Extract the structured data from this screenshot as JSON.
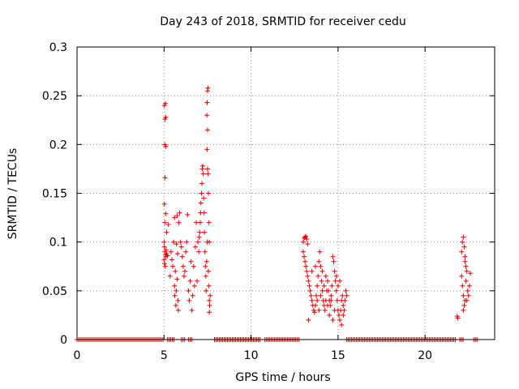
{
  "chart_data": {
    "type": "scatter",
    "title": "Day 243 of 2018, SRMTID for receiver cedu",
    "xlabel": "GPS time / hours",
    "ylabel": "SRMTID / TECUs",
    "xlim": [
      0,
      24
    ],
    "ylim": [
      0,
      0.3
    ],
    "grid": true,
    "marker": "plus",
    "color": "#e00000",
    "x_ticks": [
      0,
      5,
      10,
      15,
      20
    ],
    "x_tick_labels": [
      "0",
      "5",
      "10",
      "15",
      "20"
    ],
    "y_ticks": [
      0,
      0.05,
      0.1,
      0.15,
      0.2,
      0.25,
      0.3
    ],
    "y_tick_labels": [
      "0",
      "0.05",
      "0.1",
      "0.15",
      "0.2",
      "0.25",
      "0.3"
    ],
    "clusters": [
      {
        "x_range": [
          5.0,
          7.6
        ],
        "y_range": [
          0.03,
          0.26
        ]
      },
      {
        "x_range": [
          12.8,
          15.6
        ],
        "y_range": [
          0.02,
          0.107
        ]
      },
      {
        "x_range": [
          21.8,
          22.6
        ],
        "y_range": [
          0.02,
          0.105
        ]
      }
    ],
    "zero_baseline_ranges": [
      [
        0.0,
        5.0
      ],
      [
        5.2,
        5.6
      ],
      [
        6.0,
        6.2
      ],
      [
        6.4,
        6.6
      ],
      [
        7.9,
        10.6
      ],
      [
        10.8,
        12.8
      ],
      [
        15.5,
        21.8
      ],
      [
        22.0,
        22.2
      ],
      [
        22.8,
        23.0
      ]
    ],
    "points": [
      [
        5.02,
        0.24
      ],
      [
        5.08,
        0.242
      ],
      [
        5.05,
        0.226
      ],
      [
        5.1,
        0.228
      ],
      [
        5.04,
        0.2
      ],
      [
        5.1,
        0.198
      ],
      [
        5.06,
        0.166
      ],
      [
        5.02,
        0.139
      ],
      [
        5.1,
        0.129
      ],
      [
        5.05,
        0.12
      ],
      [
        5.25,
        0.118
      ],
      [
        5.15,
        0.11
      ],
      [
        5.0,
        0.1
      ],
      [
        5.02,
        0.095
      ],
      [
        5.05,
        0.09
      ],
      [
        5.08,
        0.087
      ],
      [
        5.1,
        0.085
      ],
      [
        5.12,
        0.092
      ],
      [
        5.0,
        0.082
      ],
      [
        5.03,
        0.078
      ],
      [
        5.07,
        0.075
      ],
      [
        5.15,
        0.088
      ],
      [
        5.2,
        0.086
      ],
      [
        5.35,
        0.065
      ],
      [
        5.4,
        0.09
      ],
      [
        5.45,
        0.082
      ],
      [
        5.5,
        0.075
      ],
      [
        5.55,
        0.1
      ],
      [
        5.6,
        0.055
      ],
      [
        5.62,
        0.045
      ],
      [
        5.65,
        0.07
      ],
      [
        5.68,
        0.035
      ],
      [
        5.7,
        0.05
      ],
      [
        5.72,
        0.098
      ],
      [
        5.75,
        0.062
      ],
      [
        5.78,
        0.088
      ],
      [
        5.8,
        0.04
      ],
      [
        5.82,
        0.03
      ],
      [
        5.6,
        0.125
      ],
      [
        5.75,
        0.127
      ],
      [
        5.85,
        0.12
      ],
      [
        5.9,
        0.13
      ],
      [
        5.95,
        0.1
      ],
      [
        6.0,
        0.095
      ],
      [
        6.05,
        0.085
      ],
      [
        6.1,
        0.075
      ],
      [
        6.15,
        0.065
      ],
      [
        6.2,
        0.07
      ],
      [
        6.25,
        0.09
      ],
      [
        6.3,
        0.1
      ],
      [
        6.35,
        0.128
      ],
      [
        6.4,
        0.05
      ],
      [
        6.45,
        0.04
      ],
      [
        6.5,
        0.06
      ],
      [
        6.55,
        0.08
      ],
      [
        6.6,
        0.03
      ],
      [
        6.65,
        0.045
      ],
      [
        6.7,
        0.075
      ],
      [
        6.75,
        0.055
      ],
      [
        6.8,
        0.095
      ],
      [
        6.85,
        0.12
      ],
      [
        6.9,
        0.06
      ],
      [
        6.95,
        0.1
      ],
      [
        7.0,
        0.09
      ],
      [
        7.02,
        0.105
      ],
      [
        7.05,
        0.11
      ],
      [
        7.08,
        0.12
      ],
      [
        7.1,
        0.13
      ],
      [
        7.12,
        0.14
      ],
      [
        7.15,
        0.15
      ],
      [
        7.18,
        0.16
      ],
      [
        7.2,
        0.175
      ],
      [
        7.22,
        0.178
      ],
      [
        7.25,
        0.17
      ],
      [
        7.28,
        0.145
      ],
      [
        7.3,
        0.13
      ],
      [
        7.32,
        0.11
      ],
      [
        7.35,
        0.09
      ],
      [
        7.38,
        0.075
      ],
      [
        7.4,
        0.065
      ],
      [
        7.42,
        0.05
      ],
      [
        7.45,
        0.08
      ],
      [
        7.48,
        0.1
      ],
      [
        7.5,
        0.255
      ],
      [
        7.52,
        0.258
      ],
      [
        7.48,
        0.243
      ],
      [
        7.46,
        0.23
      ],
      [
        7.5,
        0.215
      ],
      [
        7.47,
        0.195
      ],
      [
        7.5,
        0.175
      ],
      [
        7.53,
        0.17
      ],
      [
        7.55,
        0.15
      ],
      [
        7.58,
        0.12
      ],
      [
        7.6,
        0.1
      ],
      [
        7.55,
        0.07
      ],
      [
        7.58,
        0.055
      ],
      [
        7.6,
        0.04
      ],
      [
        7.62,
        0.035
      ],
      [
        7.65,
        0.045
      ],
      [
        7.6,
        0.028
      ],
      [
        13.0,
        0.1
      ],
      [
        13.05,
        0.104
      ],
      [
        13.1,
        0.105
      ],
      [
        13.15,
        0.106
      ],
      [
        13.2,
        0.103
      ],
      [
        13.25,
        0.098
      ],
      [
        13.0,
        0.09
      ],
      [
        13.05,
        0.085
      ],
      [
        13.1,
        0.08
      ],
      [
        13.15,
        0.075
      ],
      [
        13.2,
        0.07
      ],
      [
        13.25,
        0.065
      ],
      [
        13.3,
        0.06
      ],
      [
        13.35,
        0.055
      ],
      [
        13.4,
        0.05
      ],
      [
        13.45,
        0.045
      ],
      [
        13.5,
        0.04
      ],
      [
        13.55,
        0.035
      ],
      [
        13.6,
        0.03
      ],
      [
        13.65,
        0.028
      ],
      [
        13.7,
        0.035
      ],
      [
        13.75,
        0.045
      ],
      [
        13.8,
        0.055
      ],
      [
        13.85,
        0.065
      ],
      [
        13.9,
        0.08
      ],
      [
        13.95,
        0.09
      ],
      [
        14.0,
        0.075
      ],
      [
        14.05,
        0.06
      ],
      [
        14.1,
        0.05
      ],
      [
        14.15,
        0.04
      ],
      [
        14.2,
        0.035
      ],
      [
        14.25,
        0.03
      ],
      [
        14.3,
        0.04
      ],
      [
        14.35,
        0.05
      ],
      [
        14.4,
        0.06
      ],
      [
        14.45,
        0.05
      ],
      [
        14.5,
        0.04
      ],
      [
        14.55,
        0.035
      ],
      [
        14.6,
        0.045
      ],
      [
        14.65,
        0.055
      ],
      [
        14.7,
        0.085
      ],
      [
        14.75,
        0.08
      ],
      [
        14.8,
        0.07
      ],
      [
        14.85,
        0.06
      ],
      [
        14.9,
        0.05
      ],
      [
        14.95,
        0.04
      ],
      [
        15.0,
        0.03
      ],
      [
        15.05,
        0.025
      ],
      [
        15.1,
        0.02
      ],
      [
        15.15,
        0.03
      ],
      [
        15.2,
        0.04
      ],
      [
        15.25,
        0.045
      ],
      [
        15.3,
        0.035
      ],
      [
        15.35,
        0.03
      ],
      [
        15.4,
        0.04
      ],
      [
        15.45,
        0.05
      ],
      [
        15.5,
        0.045
      ],
      [
        13.3,
        0.02
      ],
      [
        13.5,
        0.07
      ],
      [
        13.7,
        0.075
      ],
      [
        13.9,
        0.03
      ],
      [
        14.1,
        0.07
      ],
      [
        14.3,
        0.065
      ],
      [
        14.5,
        0.025
      ],
      [
        14.7,
        0.02
      ],
      [
        14.9,
        0.065
      ],
      [
        15.1,
        0.06
      ],
      [
        15.3,
        0.025
      ],
      [
        13.8,
        0.04
      ],
      [
        14.0,
        0.045
      ],
      [
        14.2,
        0.055
      ],
      [
        14.4,
        0.035
      ],
      [
        14.6,
        0.04
      ],
      [
        14.8,
        0.03
      ],
      [
        15.0,
        0.055
      ],
      [
        15.2,
        0.015
      ],
      [
        21.85,
        0.024
      ],
      [
        21.88,
        0.022
      ],
      [
        22.1,
        0.09
      ],
      [
        22.15,
        0.1
      ],
      [
        22.2,
        0.105
      ],
      [
        22.25,
        0.095
      ],
      [
        22.3,
        0.085
      ],
      [
        22.35,
        0.075
      ],
      [
        22.1,
        0.065
      ],
      [
        22.15,
        0.055
      ],
      [
        22.2,
        0.045
      ],
      [
        22.25,
        0.035
      ],
      [
        22.3,
        0.04
      ],
      [
        22.35,
        0.06
      ],
      [
        22.4,
        0.07
      ],
      [
        22.45,
        0.05
      ],
      [
        22.5,
        0.045
      ],
      [
        22.55,
        0.055
      ],
      [
        22.6,
        0.068
      ],
      [
        22.2,
        0.03
      ],
      [
        22.3,
        0.08
      ],
      [
        22.4,
        0.04
      ]
    ]
  }
}
